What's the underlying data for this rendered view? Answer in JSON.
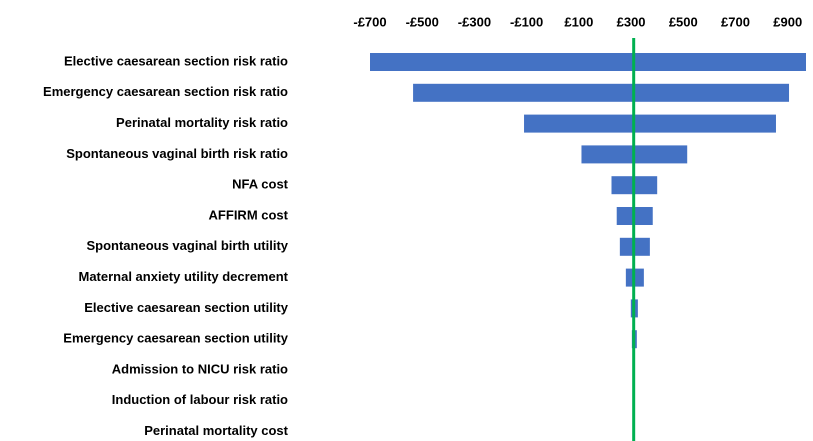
{
  "chart_data": {
    "type": "tornado",
    "categories": [
      "Elective caesarean section risk ratio",
      "Emergency caesarean section risk ratio",
      "Perinatal mortality risk ratio",
      "Spontaneous vaginal birth risk ratio",
      "NFA cost",
      "AFFIRM cost",
      "Spontaneous vaginal birth utility",
      "Maternal anxiety utility decrement",
      "Elective caesarean section utility",
      "Emergency caesarean section utility",
      "Admission to NICU risk ratio",
      "Induction of labour risk ratio",
      "Perinatal mortality cost"
    ],
    "low": [
      -700,
      -535,
      -110,
      110,
      225,
      245,
      257,
      280,
      299,
      303,
      310,
      310,
      310
    ],
    "high": [
      970,
      905,
      855,
      515,
      400,
      383,
      372,
      349,
      326,
      322,
      310,
      310,
      310
    ],
    "base": 310,
    "color": "#4472c4",
    "base_color": "#00b050",
    "xlim": [
      -700,
      970
    ],
    "xticks": [
      {
        "value": -700,
        "label": "-£700"
      },
      {
        "value": -500,
        "label": "-£500"
      },
      {
        "value": -300,
        "label": "-£300"
      },
      {
        "value": -100,
        "label": "-£100"
      },
      {
        "value": 100,
        "label": "£100"
      },
      {
        "value": 300,
        "label": "£300"
      },
      {
        "value": 500,
        "label": "£500"
      },
      {
        "value": 700,
        "label": "£700"
      },
      {
        "value": 900,
        "label": "£900"
      }
    ]
  }
}
